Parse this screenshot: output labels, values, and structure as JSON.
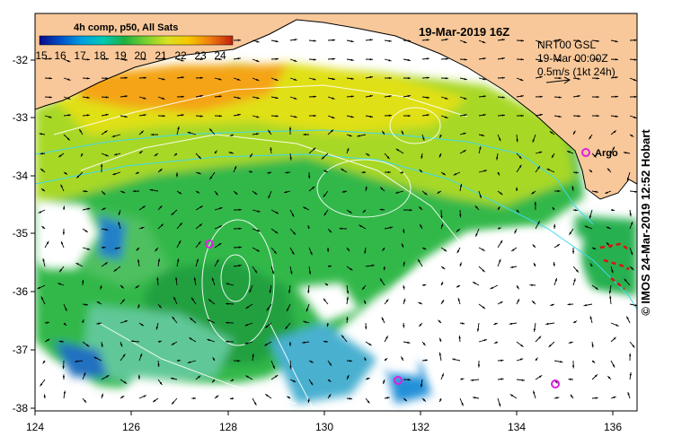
{
  "header": {
    "product_label": "4h comp, p50, All Sats",
    "date_title": "19-Mar-2019 16Z"
  },
  "colorbar": {
    "ticks": [
      "15",
      "16",
      "17",
      "18",
      "19",
      "20",
      "21",
      "22",
      "23",
      "24"
    ],
    "min": 15,
    "max": 24.5,
    "colors": [
      "#0a0a8a",
      "#0050c8",
      "#00a0e0",
      "#00c8b4",
      "#20b040",
      "#78d030",
      "#d8e020",
      "#f8c800",
      "#f08010",
      "#c02010"
    ]
  },
  "current_legend": {
    "line1": "NRT00 GSL",
    "line2": "19-Mar 00:00Z",
    "line3": "0.5m/s (1kt 24h)"
  },
  "argo": {
    "label": "Argo",
    "color": "#e020e0"
  },
  "axes": {
    "x_ticks": [
      "124",
      "126",
      "128",
      "130",
      "132",
      "134",
      "136"
    ],
    "y_ticks": [
      "-32",
      "-33",
      "-34",
      "-35",
      "-36",
      "-37",
      "-38"
    ]
  },
  "credit": "© IMOS 24-Mar-2019 12:52 Hobart",
  "colors": {
    "land": "#f8c89a",
    "bathymetry": "#40d8f0",
    "ssh_contour": "#ffffff",
    "cloud": "#ffffff"
  }
}
